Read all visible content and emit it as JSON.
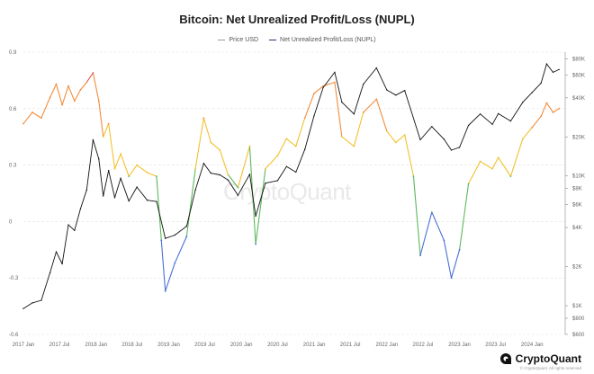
{
  "chart_data": {
    "type": "line",
    "title": "Bitcoin: Net Unrealized Profit/Loss (NUPL)",
    "legend_placement": "top-center",
    "series": [
      {
        "name": "Price USD",
        "color": "#111111",
        "axis": "right",
        "scale": "log",
        "points": [
          [
            "2017-01-01",
            950
          ],
          [
            "2017-02-15",
            1050
          ],
          [
            "2017-04-01",
            1100
          ],
          [
            "2017-05-15",
            1800
          ],
          [
            "2017-06-15",
            2600
          ],
          [
            "2017-07-15",
            2100
          ],
          [
            "2017-08-15",
            4200
          ],
          [
            "2017-09-15",
            3800
          ],
          [
            "2017-10-15",
            5600
          ],
          [
            "2017-11-15",
            7800
          ],
          [
            "2017-12-17",
            19000
          ],
          [
            "2018-01-15",
            13500
          ],
          [
            "2018-02-06",
            7000
          ],
          [
            "2018-03-05",
            11000
          ],
          [
            "2018-04-05",
            6800
          ],
          [
            "2018-05-05",
            9600
          ],
          [
            "2018-06-15",
            6400
          ],
          [
            "2018-07-25",
            8200
          ],
          [
            "2018-09-15",
            6500
          ],
          [
            "2018-11-01",
            6350
          ],
          [
            "2018-12-15",
            3300
          ],
          [
            "2019-02-01",
            3500
          ],
          [
            "2019-04-01",
            4100
          ],
          [
            "2019-05-15",
            7800
          ],
          [
            "2019-06-26",
            12500
          ],
          [
            "2019-08-01",
            10500
          ],
          [
            "2019-09-15",
            10200
          ],
          [
            "2019-10-26",
            9300
          ],
          [
            "2019-12-15",
            7100
          ],
          [
            "2020-02-12",
            10300
          ],
          [
            "2020-03-13",
            4900
          ],
          [
            "2020-05-01",
            8800
          ],
          [
            "2020-07-01",
            9200
          ],
          [
            "2020-08-15",
            11800
          ],
          [
            "2020-10-01",
            10700
          ],
          [
            "2020-11-15",
            16000
          ],
          [
            "2020-12-31",
            29000
          ],
          [
            "2021-02-15",
            48000
          ],
          [
            "2021-04-14",
            63000
          ],
          [
            "2021-05-20",
            37000
          ],
          [
            "2021-07-20",
            30000
          ],
          [
            "2021-09-05",
            51000
          ],
          [
            "2021-11-10",
            68000
          ],
          [
            "2022-01-01",
            46000
          ],
          [
            "2022-02-15",
            42000
          ],
          [
            "2022-04-01",
            45500
          ],
          [
            "2022-06-18",
            19000
          ],
          [
            "2022-08-15",
            24000
          ],
          [
            "2022-10-15",
            19200
          ],
          [
            "2022-11-21",
            15800
          ],
          [
            "2023-01-01",
            16600
          ],
          [
            "2023-02-15",
            24500
          ],
          [
            "2023-04-15",
            30000
          ],
          [
            "2023-06-15",
            25000
          ],
          [
            "2023-07-15",
            30200
          ],
          [
            "2023-09-15",
            26500
          ],
          [
            "2023-11-15",
            37000
          ],
          [
            "2024-01-01",
            44000
          ],
          [
            "2024-02-15",
            52000
          ],
          [
            "2024-03-14",
            73000
          ],
          [
            "2024-04-15",
            63000
          ],
          [
            "2024-05-15",
            66000
          ]
        ]
      },
      {
        "name": "Net Unrealized Profit/Loss (NUPL)",
        "color": "#1f3a6e",
        "axis": "left",
        "zones": [
          {
            "from": -1,
            "to": 0,
            "color": "#4a6fd8"
          },
          {
            "from": 0,
            "to": 0.25,
            "color": "#5cb85c"
          },
          {
            "from": 0.25,
            "to": 0.5,
            "color": "#f2c12e"
          },
          {
            "from": 0.5,
            "to": 0.75,
            "color": "#f28c3c"
          },
          {
            "from": 0.75,
            "to": 1,
            "color": "#e05a5a"
          }
        ],
        "points": [
          [
            "2017-01-01",
            0.52
          ],
          [
            "2017-02-15",
            0.58
          ],
          [
            "2017-04-01",
            0.55
          ],
          [
            "2017-05-15",
            0.66
          ],
          [
            "2017-06-15",
            0.73
          ],
          [
            "2017-07-15",
            0.62
          ],
          [
            "2017-08-15",
            0.72
          ],
          [
            "2017-09-15",
            0.64
          ],
          [
            "2017-10-15",
            0.7
          ],
          [
            "2017-11-15",
            0.74
          ],
          [
            "2017-12-17",
            0.79
          ],
          [
            "2018-01-15",
            0.64
          ],
          [
            "2018-02-06",
            0.45
          ],
          [
            "2018-03-05",
            0.52
          ],
          [
            "2018-04-05",
            0.28
          ],
          [
            "2018-05-05",
            0.36
          ],
          [
            "2018-06-15",
            0.24
          ],
          [
            "2018-07-25",
            0.3
          ],
          [
            "2018-09-15",
            0.26
          ],
          [
            "2018-11-01",
            0.24
          ],
          [
            "2018-11-25",
            -0.1
          ],
          [
            "2018-12-15",
            -0.37
          ],
          [
            "2019-02-01",
            -0.22
          ],
          [
            "2019-04-01",
            -0.08
          ],
          [
            "2019-05-15",
            0.28
          ],
          [
            "2019-06-26",
            0.55
          ],
          [
            "2019-08-01",
            0.42
          ],
          [
            "2019-09-15",
            0.38
          ],
          [
            "2019-10-26",
            0.25
          ],
          [
            "2019-12-15",
            0.18
          ],
          [
            "2020-02-12",
            0.4
          ],
          [
            "2020-03-13",
            -0.12
          ],
          [
            "2020-05-01",
            0.28
          ],
          [
            "2020-07-01",
            0.35
          ],
          [
            "2020-08-15",
            0.44
          ],
          [
            "2020-10-01",
            0.4
          ],
          [
            "2020-11-15",
            0.55
          ],
          [
            "2020-12-31",
            0.68
          ],
          [
            "2021-02-15",
            0.72
          ],
          [
            "2021-04-14",
            0.74
          ],
          [
            "2021-05-20",
            0.45
          ],
          [
            "2021-07-20",
            0.4
          ],
          [
            "2021-09-05",
            0.58
          ],
          [
            "2021-11-10",
            0.65
          ],
          [
            "2022-01-01",
            0.48
          ],
          [
            "2022-02-15",
            0.42
          ],
          [
            "2022-04-01",
            0.46
          ],
          [
            "2022-05-15",
            0.24
          ],
          [
            "2022-06-18",
            -0.18
          ],
          [
            "2022-08-15",
            0.05
          ],
          [
            "2022-10-15",
            -0.1
          ],
          [
            "2022-11-21",
            -0.3
          ],
          [
            "2023-01-01",
            -0.15
          ],
          [
            "2023-02-15",
            0.2
          ],
          [
            "2023-04-15",
            0.32
          ],
          [
            "2023-06-15",
            0.28
          ],
          [
            "2023-07-15",
            0.34
          ],
          [
            "2023-09-15",
            0.24
          ],
          [
            "2023-11-15",
            0.44
          ],
          [
            "2024-01-01",
            0.5
          ],
          [
            "2024-02-15",
            0.56
          ],
          [
            "2024-03-14",
            0.63
          ],
          [
            "2024-04-15",
            0.58
          ],
          [
            "2024-05-15",
            0.6
          ]
        ]
      }
    ],
    "y_left": {
      "range": [
        -0.6,
        0.9
      ],
      "ticks": [
        0.9,
        0.6,
        0.3,
        0,
        -0.3,
        -0.6
      ],
      "tick_labels": [
        "0.9",
        "0.6",
        "0.3",
        "0",
        "-0.3",
        "-0.6"
      ]
    },
    "y_right": {
      "scale": "log",
      "range": [
        600,
        90000
      ],
      "ticks": [
        80000,
        60000,
        40000,
        20000,
        10000,
        8000,
        6000,
        4000,
        2000,
        1000,
        800,
        600
      ],
      "tick_labels": [
        "$80K",
        "$60K",
        "$40K",
        "$20K",
        "$10K",
        "$8K",
        "$6K",
        "$4K",
        "$2K",
        "$1K",
        "$800",
        "$600"
      ]
    },
    "x": {
      "range": [
        "2017-01-01",
        "2024-06-15"
      ],
      "ticks": [
        "2017-01-01",
        "2017-07-01",
        "2018-01-01",
        "2018-07-01",
        "2019-01-01",
        "2019-07-01",
        "2020-01-01",
        "2020-07-01",
        "2021-01-01",
        "2021-07-01",
        "2022-01-01",
        "2022-07-01",
        "2023-01-01",
        "2023-07-01",
        "2024-01-01"
      ],
      "tick_labels": [
        "2017 Jan",
        "2017 Jul",
        "2018 Jan",
        "2018 Jul",
        "2019 Jan",
        "2019 Jul",
        "2020 Jan",
        "2020 Jul",
        "2021 Jan",
        "2021 Jul",
        "2022 Jan",
        "2022 Jul",
        "2023 Jan",
        "2023 Jul",
        "2024 Jan"
      ]
    },
    "grid": {
      "horizontal": true,
      "vertical": false,
      "style": "dashed"
    }
  },
  "watermark": "CryptoQuant",
  "footer": {
    "brand": "CryptoQuant",
    "copyright": "© CryptoQuant. All rights reserved"
  }
}
